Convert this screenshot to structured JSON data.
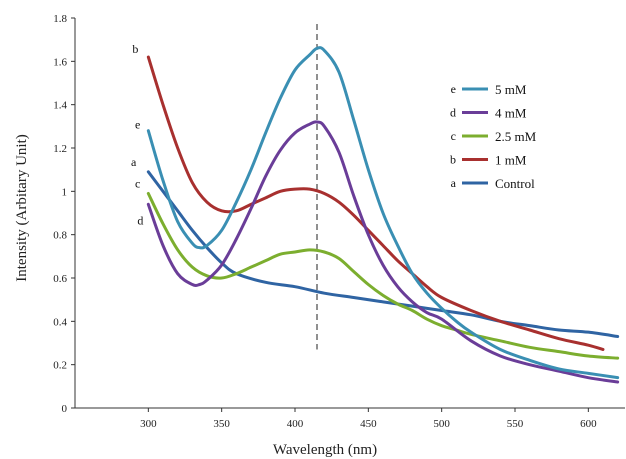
{
  "chart_data": {
    "type": "line",
    "xlabel": "Wavelength (nm)",
    "ylabel": "Intensity (Arbitary Unit)",
    "xlim": [
      250,
      625
    ],
    "ylim": [
      0,
      1.8
    ],
    "x_ticks": [
      300,
      350,
      400,
      450,
      500,
      550,
      600
    ],
    "y_ticks": [
      0,
      0.2,
      0.4,
      0.6,
      0.8,
      1,
      1.2,
      1.4,
      1.6,
      1.8
    ],
    "y_tick_labels": [
      "0",
      "0.2",
      "0.4",
      "0.6",
      "0.8",
      "1",
      "1.2",
      "1.4",
      "1.6",
      "1.8"
    ],
    "reference_line_x": 415,
    "grid": false,
    "legend_position": "right",
    "series": [
      {
        "letter": "e",
        "name": "5 mM",
        "color": "#3a8fb3",
        "x": [
          300,
          310,
          320,
          330,
          335,
          340,
          350,
          360,
          370,
          380,
          390,
          400,
          410,
          415,
          420,
          430,
          440,
          450,
          460,
          470,
          480,
          490,
          500,
          510,
          520,
          540,
          560,
          580,
          600,
          620
        ],
        "y": [
          1.28,
          1.05,
          0.86,
          0.76,
          0.74,
          0.75,
          0.82,
          0.95,
          1.1,
          1.27,
          1.43,
          1.56,
          1.63,
          1.66,
          1.65,
          1.55,
          1.33,
          1.1,
          0.9,
          0.75,
          0.62,
          0.53,
          0.46,
          0.4,
          0.35,
          0.27,
          0.22,
          0.18,
          0.16,
          0.14
        ]
      },
      {
        "letter": "d",
        "name": "4 mM",
        "color": "#6a3d98",
        "x": [
          300,
          310,
          320,
          330,
          335,
          340,
          350,
          360,
          370,
          380,
          390,
          400,
          410,
          415,
          420,
          430,
          440,
          450,
          460,
          470,
          480,
          490,
          500,
          520,
          540,
          560,
          580,
          600,
          620
        ],
        "y": [
          0.94,
          0.75,
          0.62,
          0.57,
          0.57,
          0.59,
          0.66,
          0.78,
          0.92,
          1.07,
          1.19,
          1.27,
          1.31,
          1.32,
          1.3,
          1.18,
          0.98,
          0.8,
          0.66,
          0.56,
          0.49,
          0.44,
          0.41,
          0.31,
          0.24,
          0.2,
          0.17,
          0.14,
          0.12
        ]
      },
      {
        "letter": "c",
        "name": "2.5 mM",
        "color": "#7cae2f",
        "x": [
          300,
          310,
          320,
          330,
          340,
          350,
          360,
          370,
          380,
          390,
          400,
          410,
          420,
          430,
          440,
          450,
          460,
          470,
          480,
          490,
          500,
          510,
          520,
          540,
          560,
          580,
          600,
          620
        ],
        "y": [
          0.99,
          0.85,
          0.73,
          0.65,
          0.61,
          0.6,
          0.62,
          0.65,
          0.68,
          0.71,
          0.72,
          0.73,
          0.72,
          0.69,
          0.63,
          0.57,
          0.52,
          0.48,
          0.45,
          0.41,
          0.38,
          0.36,
          0.34,
          0.31,
          0.28,
          0.26,
          0.24,
          0.23
        ]
      },
      {
        "letter": "b",
        "name": "1 mM",
        "color": "#a8302f",
        "x": [
          300,
          310,
          320,
          330,
          340,
          350,
          360,
          370,
          380,
          390,
          400,
          410,
          420,
          430,
          440,
          450,
          460,
          470,
          480,
          490,
          500,
          520,
          540,
          560,
          580,
          600,
          610
        ],
        "y": [
          1.62,
          1.4,
          1.2,
          1.04,
          0.95,
          0.91,
          0.91,
          0.94,
          0.97,
          1.0,
          1.01,
          1.01,
          0.99,
          0.95,
          0.89,
          0.82,
          0.75,
          0.68,
          0.62,
          0.56,
          0.51,
          0.45,
          0.4,
          0.36,
          0.32,
          0.29,
          0.27
        ]
      },
      {
        "letter": "a",
        "name": "Control",
        "color": "#2f64a3",
        "x": [
          300,
          310,
          320,
          330,
          340,
          350,
          360,
          380,
          400,
          420,
          440,
          460,
          480,
          500,
          520,
          540,
          560,
          580,
          600,
          620
        ],
        "y": [
          1.09,
          1.0,
          0.91,
          0.82,
          0.74,
          0.67,
          0.62,
          0.58,
          0.56,
          0.53,
          0.51,
          0.49,
          0.47,
          0.45,
          0.43,
          0.4,
          0.38,
          0.36,
          0.35,
          0.33
        ]
      }
    ]
  }
}
